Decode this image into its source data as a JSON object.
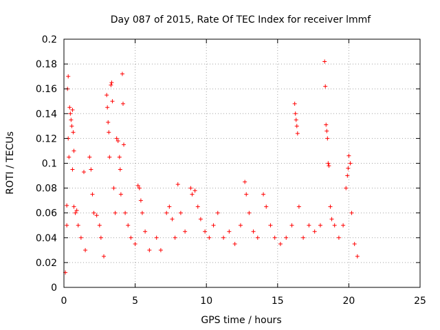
{
  "chart_data": {
    "type": "scatter",
    "title": "Day 087 of 2015, Rate Of TEC Index for receiver lmmf",
    "xlabel": "GPS time / hours",
    "ylabel": "ROTI / TECUs",
    "xlim": [
      0,
      25
    ],
    "ylim": [
      0,
      0.2
    ],
    "x_ticks": [
      "0",
      "5",
      "10",
      "15",
      "20",
      "25"
    ],
    "y_ticks": [
      "0",
      "0.02",
      "0.04",
      "0.06",
      "0.08",
      "0.1",
      "0.12",
      "0.14",
      "0.16",
      "0.18",
      "0.2"
    ],
    "x_tick_values": [
      0,
      5,
      10,
      15,
      20,
      25
    ],
    "y_tick_values": [
      0,
      0.02,
      0.04,
      0.06,
      0.08,
      0.1,
      0.12,
      0.14,
      0.16,
      0.18,
      0.2
    ],
    "grid": true,
    "marker": "+",
    "marker_color": "#ff0000",
    "series": [
      {
        "points": [
          [
            0.1,
            0.012
          ],
          [
            0.2,
            0.05
          ],
          [
            0.2,
            0.066
          ],
          [
            0.25,
            0.16
          ],
          [
            0.3,
            0.17
          ],
          [
            0.3,
            0.12
          ],
          [
            0.35,
            0.105
          ],
          [
            0.4,
            0.145
          ],
          [
            0.45,
            0.14
          ],
          [
            0.5,
            0.135
          ],
          [
            0.55,
            0.13
          ],
          [
            0.6,
            0.143
          ],
          [
            0.6,
            0.095
          ],
          [
            0.65,
            0.125
          ],
          [
            0.7,
            0.11
          ],
          [
            0.7,
            0.065
          ],
          [
            0.8,
            0.06
          ],
          [
            0.9,
            0.062
          ],
          [
            1.0,
            0.05
          ],
          [
            1.2,
            0.04
          ],
          [
            1.4,
            0.093
          ],
          [
            1.5,
            0.03
          ],
          [
            1.8,
            0.105
          ],
          [
            1.9,
            0.095
          ],
          [
            2.0,
            0.075
          ],
          [
            2.1,
            0.06
          ],
          [
            2.3,
            0.058
          ],
          [
            2.5,
            0.05
          ],
          [
            2.6,
            0.04
          ],
          [
            2.8,
            0.025
          ],
          [
            3.0,
            0.155
          ],
          [
            3.05,
            0.145
          ],
          [
            3.1,
            0.133
          ],
          [
            3.15,
            0.125
          ],
          [
            3.2,
            0.105
          ],
          [
            3.3,
            0.163
          ],
          [
            3.35,
            0.165
          ],
          [
            3.4,
            0.15
          ],
          [
            3.5,
            0.08
          ],
          [
            3.6,
            0.06
          ],
          [
            3.7,
            0.12
          ],
          [
            3.8,
            0.118
          ],
          [
            3.9,
            0.105
          ],
          [
            3.95,
            0.095
          ],
          [
            4.0,
            0.075
          ],
          [
            4.1,
            0.172
          ],
          [
            4.15,
            0.148
          ],
          [
            4.2,
            0.115
          ],
          [
            4.3,
            0.06
          ],
          [
            4.5,
            0.05
          ],
          [
            4.7,
            0.04
          ],
          [
            5.0,
            0.035
          ],
          [
            5.2,
            0.082
          ],
          [
            5.3,
            0.08
          ],
          [
            5.4,
            0.07
          ],
          [
            5.5,
            0.06
          ],
          [
            5.7,
            0.045
          ],
          [
            6.0,
            0.03
          ],
          [
            6.5,
            0.04
          ],
          [
            6.8,
            0.03
          ],
          [
            7.2,
            0.06
          ],
          [
            7.4,
            0.065
          ],
          [
            7.6,
            0.055
          ],
          [
            7.8,
            0.04
          ],
          [
            8.0,
            0.083
          ],
          [
            8.2,
            0.06
          ],
          [
            8.5,
            0.045
          ],
          [
            8.9,
            0.08
          ],
          [
            9.0,
            0.075
          ],
          [
            9.2,
            0.078
          ],
          [
            9.4,
            0.065
          ],
          [
            9.6,
            0.055
          ],
          [
            9.9,
            0.045
          ],
          [
            10.2,
            0.04
          ],
          [
            10.5,
            0.05
          ],
          [
            10.8,
            0.06
          ],
          [
            11.2,
            0.04
          ],
          [
            11.6,
            0.045
          ],
          [
            12.0,
            0.035
          ],
          [
            12.4,
            0.05
          ],
          [
            12.7,
            0.085
          ],
          [
            12.8,
            0.075
          ],
          [
            13.0,
            0.06
          ],
          [
            13.3,
            0.045
          ],
          [
            13.6,
            0.04
          ],
          [
            14.0,
            0.075
          ],
          [
            14.2,
            0.065
          ],
          [
            14.5,
            0.05
          ],
          [
            14.8,
            0.04
          ],
          [
            15.2,
            0.035
          ],
          [
            15.6,
            0.04
          ],
          [
            16.0,
            0.05
          ],
          [
            16.2,
            0.148
          ],
          [
            16.25,
            0.14
          ],
          [
            16.3,
            0.135
          ],
          [
            16.35,
            0.13
          ],
          [
            16.4,
            0.124
          ],
          [
            16.5,
            0.065
          ],
          [
            16.8,
            0.04
          ],
          [
            17.2,
            0.05
          ],
          [
            17.6,
            0.045
          ],
          [
            18.0,
            0.05
          ],
          [
            18.3,
            0.182
          ],
          [
            18.35,
            0.162
          ],
          [
            18.4,
            0.131
          ],
          [
            18.45,
            0.126
          ],
          [
            18.5,
            0.12
          ],
          [
            18.55,
            0.1
          ],
          [
            18.6,
            0.098
          ],
          [
            18.7,
            0.065
          ],
          [
            18.8,
            0.055
          ],
          [
            19.0,
            0.05
          ],
          [
            19.3,
            0.04
          ],
          [
            19.6,
            0.05
          ],
          [
            19.8,
            0.08
          ],
          [
            19.9,
            0.09
          ],
          [
            19.95,
            0.096
          ],
          [
            20.0,
            0.106
          ],
          [
            20.1,
            0.1
          ],
          [
            20.2,
            0.06
          ],
          [
            20.4,
            0.035
          ],
          [
            20.6,
            0.025
          ]
        ]
      }
    ]
  }
}
